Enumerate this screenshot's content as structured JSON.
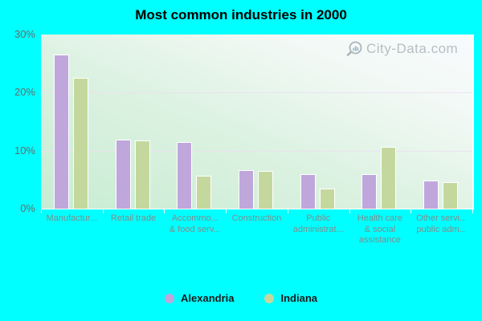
{
  "page": {
    "background_color": "#00ffff"
  },
  "watermark": {
    "text": "City-Data.com",
    "icon": "magnifier-chart-icon"
  },
  "chart_data": {
    "type": "bar",
    "title": "Most common industries in 2000",
    "categories": [
      "Manufactur...",
      "Retail trade",
      "Accommo... & food serv...",
      "Construction",
      "Public administrat...",
      "Health care & social assistance",
      "Other servi... public adm..."
    ],
    "category_label_lines": [
      [
        "Manufactur..."
      ],
      [
        "Retail trade"
      ],
      [
        "Accommo...",
        "& food serv..."
      ],
      [
        "Construction"
      ],
      [
        "Public",
        "administrat..."
      ],
      [
        "Health care",
        "& social",
        "assistance"
      ],
      [
        "Other servi...",
        "public adm..."
      ]
    ],
    "series": [
      {
        "name": "Alexandria",
        "color": "#bfa7dc",
        "values": [
          26.6,
          11.9,
          11.5,
          6.7,
          6.0,
          5.9,
          4.8
        ]
      },
      {
        "name": "Indiana",
        "color": "#c4d89e",
        "values": [
          22.5,
          11.8,
          5.7,
          6.5,
          3.4,
          10.7,
          4.6
        ]
      }
    ],
    "xlabel": "",
    "ylabel": "",
    "ylim": [
      0,
      30
    ],
    "ytick_labels": [
      "0%",
      "10%",
      "20%",
      "30%"
    ],
    "ytick_values": [
      0,
      10,
      20,
      30
    ],
    "grid": true,
    "gridline_values": [
      10,
      20
    ],
    "legend_position": "bottom",
    "bar_border_color": "#ffffff"
  }
}
